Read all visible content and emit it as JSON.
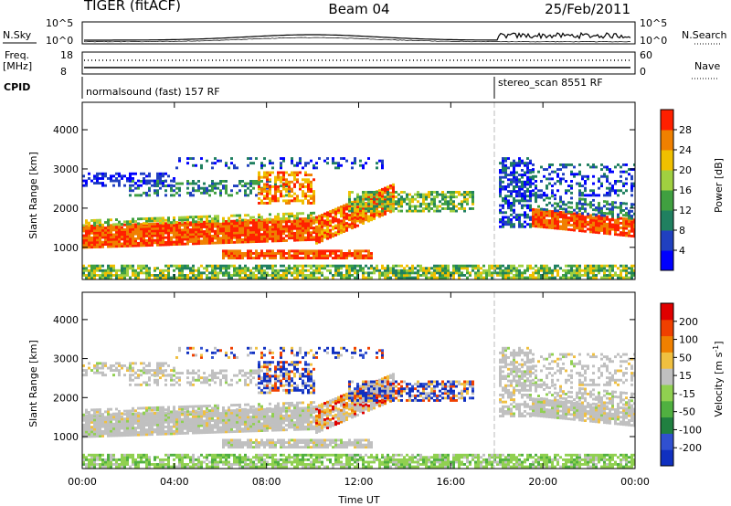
{
  "header": {
    "radar": "TIGER (fitACF)",
    "beam": "Beam 04",
    "date": "25/Feb/2011"
  },
  "panels": {
    "nsky": {
      "label": "N.Sky",
      "scale_top": "10^5",
      "scale_bottom": "10^0"
    },
    "nsearch": {
      "label": "N.Search",
      "scale_top": "10^5",
      "scale_bottom": "10^0"
    },
    "freq": {
      "label_line1": "Freq.",
      "label_line2": "[MHz]",
      "scale_top": "18",
      "scale_bottom": "8"
    },
    "nave": {
      "label": "Nave",
      "scale_top": "60",
      "scale_bottom": "0"
    },
    "cpid": {
      "label": "CPID",
      "mode1": "normalsound (fast) 157 RF",
      "mode2": "stereo_scan 8551 RF"
    }
  },
  "chart_data": [
    {
      "type": "heatmap",
      "name": "power",
      "ylabel": "Slant Range [km]",
      "xlabel": "",
      "x_ticks": [
        "00:00",
        "04:00",
        "08:00",
        "12:00",
        "16:00",
        "20:00",
        "00:00"
      ],
      "y_ticks": [
        "1000",
        "2000",
        "3000",
        "4000"
      ],
      "xlim_hours": [
        0,
        24
      ],
      "ylim_km": [
        180,
        4700
      ],
      "colorbar": {
        "label": "Power [dB]",
        "ticks": [
          "4",
          "8",
          "12",
          "16",
          "20",
          "24",
          "28"
        ],
        "colors": [
          "#0000ff",
          "#2040c0",
          "#208060",
          "#40a040",
          "#a0d040",
          "#f0c000",
          "#f08000",
          "#ff2000"
        ]
      }
    },
    {
      "type": "heatmap",
      "name": "velocity",
      "ylabel": "Slant Range [km]",
      "xlabel": "Time UT",
      "x_ticks": [
        "00:00",
        "04:00",
        "08:00",
        "12:00",
        "16:00",
        "20:00",
        "00:00"
      ],
      "y_ticks": [
        "1000",
        "2000",
        "3000",
        "4000"
      ],
      "xlim_hours": [
        0,
        24
      ],
      "ylim_km": [
        180,
        4700
      ],
      "colorbar": {
        "label": "Velocity [m s-1]",
        "label_main": "Velocity [m s",
        "label_exp": "-1",
        "label_end": "]",
        "ticks": [
          "200",
          "100",
          "50",
          "15",
          "-15",
          "-50",
          "-100",
          "-200"
        ],
        "colors": [
          "#1030c0",
          "#3050d0",
          "#208040",
          "#50b040",
          "#90d050",
          "#c0c0c0",
          "#f0c040",
          "#f08000",
          "#f04000",
          "#e00000"
        ]
      }
    }
  ]
}
